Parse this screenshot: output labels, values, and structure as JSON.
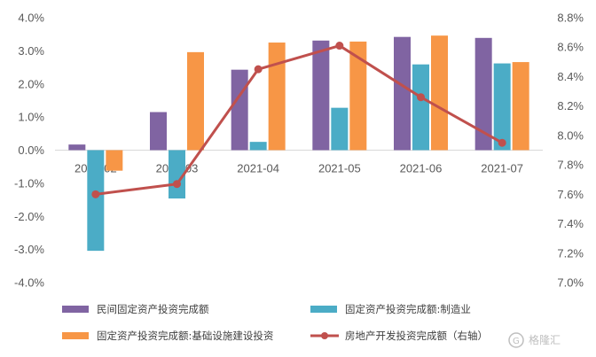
{
  "chart_data": {
    "type": "bar",
    "categories": [
      "2021-02",
      "2021-03",
      "2021-04",
      "2021-05",
      "2021-06",
      "2021-07"
    ],
    "left_axis": {
      "ylim": [
        -4.0,
        4.0
      ],
      "ticks": [
        4.0,
        3.0,
        2.0,
        1.0,
        0.0,
        -1.0,
        -2.0,
        -3.0,
        -4.0
      ],
      "tick_labels": [
        "4.0%",
        "3.0%",
        "2.0%",
        "1.0%",
        "0.0%",
        "-1.0%",
        "-2.0%",
        "-3.0%",
        "-4.0%"
      ]
    },
    "right_axis": {
      "ylim": [
        7.0,
        8.8
      ],
      "ticks": [
        8.8,
        8.6,
        8.4,
        8.2,
        8.0,
        7.8,
        7.6,
        7.4,
        7.2,
        7.0
      ],
      "tick_labels": [
        "8.8%",
        "8.6%",
        "8.4%",
        "8.2%",
        "8.0%",
        "7.8%",
        "7.6%",
        "7.4%",
        "7.2%",
        "7.0%"
      ]
    },
    "series": [
      {
        "name": "民间固定资产投资完成额",
        "type": "bar",
        "axis": "left",
        "color": "#8064a2",
        "values": [
          0.17,
          1.15,
          2.43,
          3.31,
          3.42,
          3.39
        ]
      },
      {
        "name": "固定资产投资完成额:制造业",
        "type": "bar",
        "axis": "left",
        "color": "#4bacc6",
        "values": [
          -3.04,
          -1.46,
          0.25,
          1.28,
          2.59,
          2.62
        ]
      },
      {
        "name": "固定资产投资完成额:基础设施建设投资",
        "type": "bar",
        "axis": "left",
        "color": "#f79646",
        "values": [
          -0.62,
          2.96,
          3.25,
          3.28,
          3.46,
          2.66
        ]
      },
      {
        "name": "房地产开发投资完成额（右轴）",
        "type": "line",
        "axis": "right",
        "color": "#c0504d",
        "values": [
          7.6,
          7.67,
          8.45,
          8.61,
          8.26,
          7.95
        ]
      }
    ],
    "legend_position": "bottom",
    "grid": false
  },
  "watermark": "格隆汇"
}
